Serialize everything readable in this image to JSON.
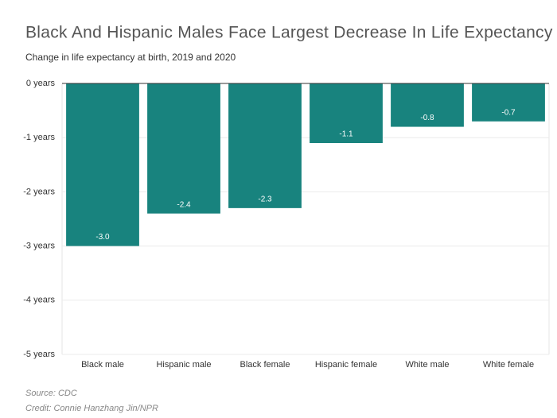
{
  "chart_data": {
    "type": "bar",
    "title": "Black And Hispanic Males Face Largest Decrease In Life Expectancy",
    "subtitle": "Change in life expectancy at birth, 2019 and 2020",
    "categories": [
      "Black male",
      "Hispanic male",
      "Black female",
      "Hispanic female",
      "White male",
      "White female"
    ],
    "values": [
      -3.0,
      -2.4,
      -2.3,
      -1.1,
      -0.8,
      -0.7
    ],
    "value_labels": [
      "-3.0",
      "-2.4",
      "-2.3",
      "-1.1",
      "-0.8",
      "-0.7"
    ],
    "color": "#18837e",
    "ylim": [
      -5,
      0
    ],
    "yticks": [
      {
        "value": 0,
        "label": "0 years"
      },
      {
        "value": -1,
        "label": "-1 years"
      },
      {
        "value": -2,
        "label": "-2 years"
      },
      {
        "value": -3,
        "label": "-3 years"
      },
      {
        "value": -4,
        "label": "-4 years"
      },
      {
        "value": -5,
        "label": "-5 years"
      }
    ],
    "grid": true,
    "source": "Source: CDC",
    "credit": "Credit: Connie Hanzhang Jin/NPR"
  }
}
